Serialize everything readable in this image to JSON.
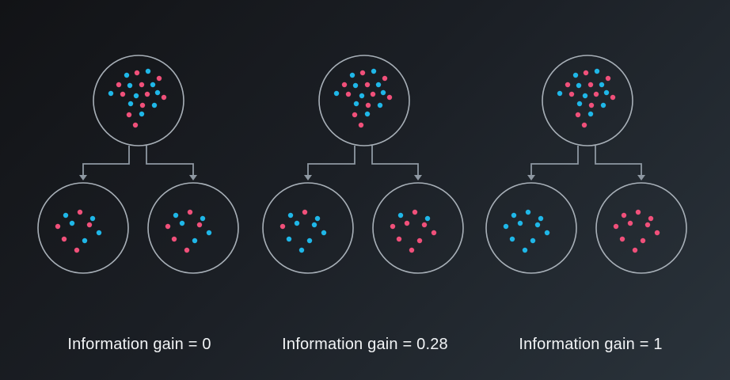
{
  "colors": {
    "blue": "#1fb7e8",
    "pink": "#f0507a",
    "line": "#8e98a2",
    "circle": "#a8b0b8"
  },
  "diagrams": [
    {
      "caption": "Information gain = 0",
      "parent": {
        "blue": 10,
        "pink": 10
      },
      "left": {
        "blue": 5,
        "pink": 5
      },
      "right": {
        "blue": 5,
        "pink": 5
      }
    },
    {
      "caption": "Information gain = 0.28",
      "parent": {
        "blue": 10,
        "pink": 10
      },
      "left": {
        "blue": 8,
        "pink": 2
      },
      "right": {
        "blue": 2,
        "pink": 8
      }
    },
    {
      "caption": "Information gain = 1",
      "parent": {
        "blue": 10,
        "pink": 10
      },
      "left": {
        "blue": 10,
        "pink": 0
      },
      "right": {
        "blue": 0,
        "pink": 10
      }
    }
  ]
}
